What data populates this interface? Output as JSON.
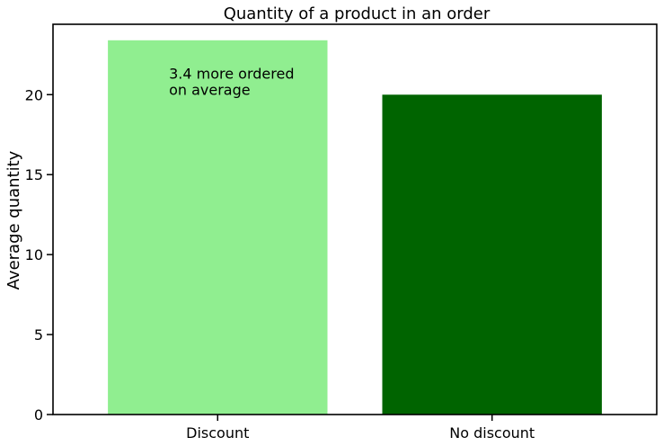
{
  "chart_data": {
    "type": "bar",
    "title": "Quantity of a product in an order",
    "xlabel": "",
    "ylabel": "Average quantity",
    "categories": [
      "Discount",
      "No discount"
    ],
    "values": [
      23.4,
      20.0
    ],
    "colors": [
      "#90ee90",
      "#006400"
    ],
    "ylim": [
      0,
      24.4
    ],
    "yticks": [
      0,
      5,
      10,
      15,
      20
    ],
    "grid": false,
    "annotation": {
      "lines": [
        "3.4 more ordered",
        "on average"
      ],
      "category": "Discount",
      "y": 20.0
    }
  }
}
